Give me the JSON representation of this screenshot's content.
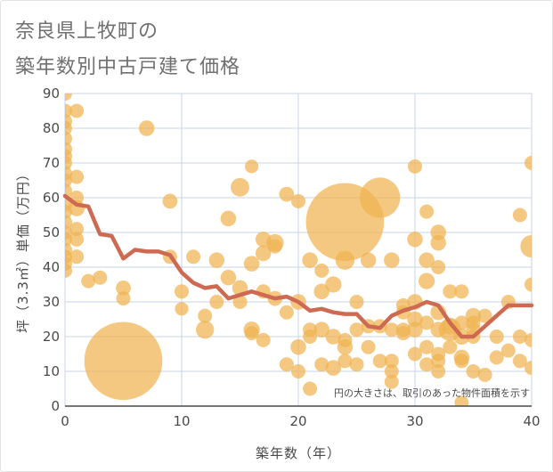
{
  "title": {
    "line1": "奈良県上牧町の",
    "line2": "築年数別中古戸建て価格"
  },
  "colors": {
    "bubble": "#f0b350",
    "line": "#cd6a51",
    "grid": "#c9d6e6",
    "plot_bg": "#ffffff"
  },
  "chart_data": {
    "type": "scatter",
    "xlabel": "築年数（年）",
    "ylabel": "坪（3.3㎡）単価（万円）",
    "xlim": [
      0,
      40
    ],
    "ylim": [
      0,
      90
    ],
    "xticks": [
      0,
      10,
      20,
      30,
      40
    ],
    "yticks": [
      0,
      10,
      20,
      30,
      40,
      50,
      60,
      70,
      80,
      90
    ],
    "grid": true,
    "note": "円の大きさは、取引のあった物件面積を示す",
    "bubbles": [
      {
        "x": 0,
        "y": 90,
        "size": 1
      },
      {
        "x": 0,
        "y": 85,
        "size": 1
      },
      {
        "x": 0,
        "y": 82,
        "size": 1
      },
      {
        "x": 0,
        "y": 80,
        "size": 1
      },
      {
        "x": 0,
        "y": 77,
        "size": 1
      },
      {
        "x": 0,
        "y": 74,
        "size": 1
      },
      {
        "x": 0,
        "y": 72,
        "size": 1
      },
      {
        "x": 0,
        "y": 70,
        "size": 1
      },
      {
        "x": 0,
        "y": 67,
        "size": 1
      },
      {
        "x": 0,
        "y": 65,
        "size": 1
      },
      {
        "x": 0,
        "y": 62,
        "size": 1
      },
      {
        "x": 0,
        "y": 58,
        "size": 1
      },
      {
        "x": 0,
        "y": 56,
        "size": 1
      },
      {
        "x": 0,
        "y": 53,
        "size": 1
      },
      {
        "x": 0,
        "y": 50,
        "size": 1
      },
      {
        "x": 0,
        "y": 48,
        "size": 1
      },
      {
        "x": 0,
        "y": 45,
        "size": 1
      },
      {
        "x": 0,
        "y": 43,
        "size": 1
      },
      {
        "x": 0,
        "y": 41,
        "size": 1
      },
      {
        "x": 0,
        "y": 39,
        "size": 1
      },
      {
        "x": 1,
        "y": 85,
        "size": 1
      },
      {
        "x": 1,
        "y": 66,
        "size": 1
      },
      {
        "x": 1,
        "y": 60,
        "size": 1
      },
      {
        "x": 1,
        "y": 57,
        "size": 1.3
      },
      {
        "x": 1,
        "y": 51,
        "size": 1
      },
      {
        "x": 1,
        "y": 48,
        "size": 1
      },
      {
        "x": 1,
        "y": 43,
        "size": 1
      },
      {
        "x": 2,
        "y": 36,
        "size": 1
      },
      {
        "x": 3,
        "y": 37,
        "size": 1
      },
      {
        "x": 5,
        "y": 34,
        "size": 1.1
      },
      {
        "x": 5,
        "y": 31,
        "size": 1
      },
      {
        "x": 5,
        "y": 13,
        "size": 30
      },
      {
        "x": 7,
        "y": 80,
        "size": 1.2
      },
      {
        "x": 9,
        "y": 59,
        "size": 1.1
      },
      {
        "x": 9,
        "y": 43,
        "size": 1
      },
      {
        "x": 10,
        "y": 33,
        "size": 1
      },
      {
        "x": 10,
        "y": 28,
        "size": 0.9
      },
      {
        "x": 11,
        "y": 43,
        "size": 1
      },
      {
        "x": 12,
        "y": 26,
        "size": 1
      },
      {
        "x": 12,
        "y": 22,
        "size": 1.6
      },
      {
        "x": 13,
        "y": 42,
        "size": 1.2
      },
      {
        "x": 13,
        "y": 30,
        "size": 1
      },
      {
        "x": 14,
        "y": 54,
        "size": 1.2
      },
      {
        "x": 14,
        "y": 37,
        "size": 1.2
      },
      {
        "x": 15,
        "y": 63,
        "size": 1.7
      },
      {
        "x": 15,
        "y": 34,
        "size": 1.2
      },
      {
        "x": 15,
        "y": 30,
        "size": 1
      },
      {
        "x": 16,
        "y": 69,
        "size": 0.9
      },
      {
        "x": 16,
        "y": 41,
        "size": 1.2
      },
      {
        "x": 16,
        "y": 22,
        "size": 1.3
      },
      {
        "x": 16,
        "y": 21,
        "size": 1
      },
      {
        "x": 17,
        "y": 48,
        "size": 1.2
      },
      {
        "x": 17,
        "y": 44,
        "size": 1.2
      },
      {
        "x": 17,
        "y": 33,
        "size": 1
      },
      {
        "x": 17,
        "y": 19,
        "size": 1
      },
      {
        "x": 18,
        "y": 47,
        "size": 1.5
      },
      {
        "x": 18,
        "y": 46,
        "size": 1
      },
      {
        "x": 18,
        "y": 31,
        "size": 1.1
      },
      {
        "x": 19,
        "y": 61,
        "size": 1.1
      },
      {
        "x": 19,
        "y": 27,
        "size": 1
      },
      {
        "x": 19,
        "y": 12,
        "size": 1
      },
      {
        "x": 20,
        "y": 59,
        "size": 1
      },
      {
        "x": 20,
        "y": 30,
        "size": 1.2
      },
      {
        "x": 20,
        "y": 17,
        "size": 1.2
      },
      {
        "x": 20,
        "y": 10,
        "size": 1
      },
      {
        "x": 21,
        "y": 42,
        "size": 1.2
      },
      {
        "x": 21,
        "y": 22,
        "size": 1
      },
      {
        "x": 21,
        "y": 20,
        "size": 1
      },
      {
        "x": 21,
        "y": 5,
        "size": 1
      },
      {
        "x": 22,
        "y": 39,
        "size": 1
      },
      {
        "x": 22,
        "y": 33,
        "size": 1.2
      },
      {
        "x": 22,
        "y": 22,
        "size": 1.2
      },
      {
        "x": 22,
        "y": 12,
        "size": 1
      },
      {
        "x": 23,
        "y": 35,
        "size": 1.3
      },
      {
        "x": 23,
        "y": 20,
        "size": 1.2
      },
      {
        "x": 23,
        "y": 11,
        "size": 1.2
      },
      {
        "x": 24,
        "y": 53,
        "size": 30
      },
      {
        "x": 24,
        "y": 42,
        "size": 1.8
      },
      {
        "x": 24,
        "y": 19,
        "size": 1
      },
      {
        "x": 24,
        "y": 17,
        "size": 1.2
      },
      {
        "x": 24,
        "y": 13,
        "size": 1
      },
      {
        "x": 25,
        "y": 30,
        "size": 1
      },
      {
        "x": 25,
        "y": 22,
        "size": 1
      },
      {
        "x": 25,
        "y": 12,
        "size": 1
      },
      {
        "x": 26,
        "y": 42,
        "size": 1.2
      },
      {
        "x": 26,
        "y": 23,
        "size": 1
      },
      {
        "x": 26,
        "y": 17,
        "size": 1
      },
      {
        "x": 27,
        "y": 60,
        "size": 8
      },
      {
        "x": 27,
        "y": 23,
        "size": 1
      },
      {
        "x": 27,
        "y": 13,
        "size": 1
      },
      {
        "x": 28,
        "y": 42,
        "size": 1.2
      },
      {
        "x": 28,
        "y": 22,
        "size": 1
      },
      {
        "x": 28,
        "y": 13,
        "size": 1
      },
      {
        "x": 28,
        "y": 10,
        "size": 1
      },
      {
        "x": 28,
        "y": 7,
        "size": 1
      },
      {
        "x": 29,
        "y": 29,
        "size": 1
      },
      {
        "x": 29,
        "y": 27,
        "size": 1
      },
      {
        "x": 29,
        "y": 22,
        "size": 1
      },
      {
        "x": 29,
        "y": 21,
        "size": 1
      },
      {
        "x": 30,
        "y": 69,
        "size": 1
      },
      {
        "x": 30,
        "y": 48,
        "size": 1.2
      },
      {
        "x": 30,
        "y": 30,
        "size": 1.2
      },
      {
        "x": 30,
        "y": 25,
        "size": 1.2
      },
      {
        "x": 30,
        "y": 22,
        "size": 1.2
      },
      {
        "x": 30,
        "y": 15,
        "size": 1
      },
      {
        "x": 31,
        "y": 56,
        "size": 1
      },
      {
        "x": 31,
        "y": 42,
        "size": 1.2
      },
      {
        "x": 31,
        "y": 36,
        "size": 1.3
      },
      {
        "x": 31,
        "y": 24,
        "size": 1
      },
      {
        "x": 31,
        "y": 17,
        "size": 1
      },
      {
        "x": 31,
        "y": 12,
        "size": 1
      },
      {
        "x": 32,
        "y": 50,
        "size": 1.2
      },
      {
        "x": 32,
        "y": 47,
        "size": 1.2
      },
      {
        "x": 32,
        "y": 40,
        "size": 1
      },
      {
        "x": 32,
        "y": 27,
        "size": 1.2
      },
      {
        "x": 32,
        "y": 22,
        "size": 1.2
      },
      {
        "x": 32,
        "y": 15,
        "size": 1
      },
      {
        "x": 32,
        "y": 13,
        "size": 1
      },
      {
        "x": 32,
        "y": 10,
        "size": 1
      },
      {
        "x": 33,
        "y": 33,
        "size": 1
      },
      {
        "x": 33,
        "y": 23,
        "size": 1.4
      },
      {
        "x": 33,
        "y": 22,
        "size": 2.5
      },
      {
        "x": 33,
        "y": 17,
        "size": 1
      },
      {
        "x": 34,
        "y": 33,
        "size": 1
      },
      {
        "x": 34,
        "y": 24,
        "size": 1
      },
      {
        "x": 34,
        "y": 20,
        "size": 1.3
      },
      {
        "x": 34,
        "y": 14,
        "size": 1.2
      },
      {
        "x": 34,
        "y": 13,
        "size": 1
      },
      {
        "x": 34,
        "y": 1,
        "size": 1
      },
      {
        "x": 35,
        "y": 26,
        "size": 1.2
      },
      {
        "x": 35,
        "y": 24,
        "size": 1
      },
      {
        "x": 35,
        "y": 22,
        "size": 1
      },
      {
        "x": 35,
        "y": 20,
        "size": 1
      },
      {
        "x": 35,
        "y": 10,
        "size": 1
      },
      {
        "x": 36,
        "y": 26,
        "size": 1
      },
      {
        "x": 36,
        "y": 9,
        "size": 1
      },
      {
        "x": 37,
        "y": 20,
        "size": 1
      },
      {
        "x": 37,
        "y": 14,
        "size": 1
      },
      {
        "x": 38,
        "y": 30,
        "size": 1
      },
      {
        "x": 38,
        "y": 16,
        "size": 1
      },
      {
        "x": 39,
        "y": 55,
        "size": 1
      },
      {
        "x": 39,
        "y": 20,
        "size": 1
      },
      {
        "x": 39,
        "y": 13,
        "size": 1
      },
      {
        "x": 40,
        "y": 70,
        "size": 1
      },
      {
        "x": 40,
        "y": 46,
        "size": 2.5
      },
      {
        "x": 40,
        "y": 35,
        "size": 1
      },
      {
        "x": 40,
        "y": 19,
        "size": 1
      },
      {
        "x": 40,
        "y": 11,
        "size": 1
      }
    ],
    "trend": {
      "x": [
        0,
        1,
        2,
        3,
        4,
        5,
        6,
        7,
        8,
        9,
        10,
        11,
        12,
        13,
        14,
        15,
        16,
        17,
        18,
        19,
        20,
        21,
        22,
        23,
        24,
        25,
        26,
        27,
        28,
        29,
        30,
        31,
        32,
        33,
        34,
        35,
        36,
        37,
        38,
        39,
        40
      ],
      "y": [
        60.5,
        58,
        57.5,
        49.5,
        49,
        42.5,
        45,
        44.5,
        44.5,
        43.5,
        38.5,
        35.5,
        34,
        34.5,
        31,
        32,
        33,
        32,
        31,
        31.5,
        30,
        27.5,
        28,
        27,
        26.5,
        26.5,
        23,
        22.5,
        26,
        27.5,
        28.5,
        30,
        29,
        24,
        20,
        20,
        23,
        26,
        29,
        29,
        29
      ]
    }
  }
}
